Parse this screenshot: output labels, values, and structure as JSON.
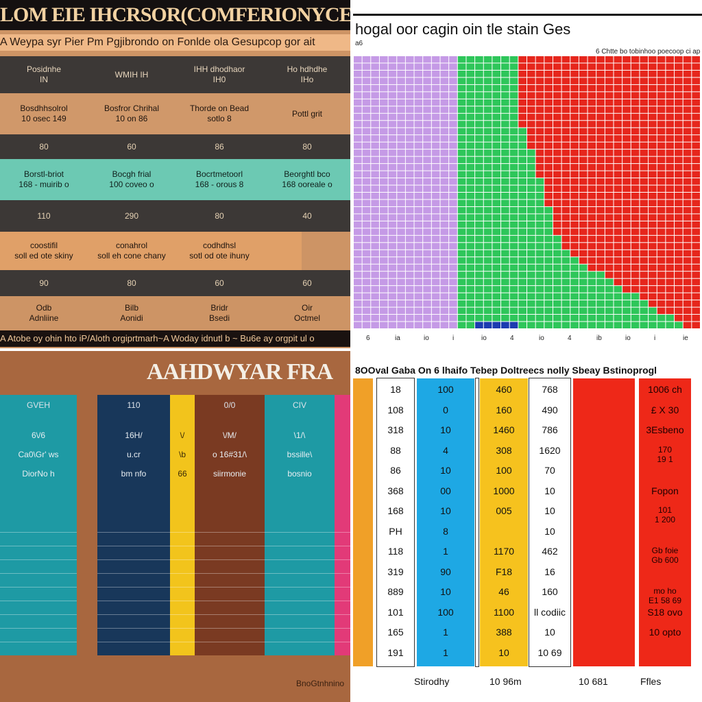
{
  "panels": {
    "top_left": {
      "title": "LOM EIE IHCRSOR(COMFERIONYCE/",
      "subtitle": "A Weypa syr Pier Pm Pgjibrondo on Fonlde ola Gesupcop gor ait",
      "rows": [
        {
          "type": "header",
          "bg": "#3c3836",
          "color": "#e8d6bd",
          "cells": [
            "Posidnhe\nIN",
            "WMIH IH",
            "IHH dhodhaor\nIH0",
            "Ho hdhdhe\nIHo"
          ]
        },
        {
          "type": "data",
          "bg": "#d0986a",
          "color": "#1e140e",
          "cells": [
            "Bosdhhsolrol\n10 osec 149",
            "Bosfror Chrihal\n10 on 86",
            "Thorde on Bead\nsotlo 8",
            "Pottl grit"
          ]
        },
        {
          "type": "value",
          "bg": "#3c3836",
          "color": "#e6d2b4",
          "cells": [
            "80",
            "60",
            "86",
            "80"
          ]
        },
        {
          "type": "data",
          "bg": "#6cc9b3",
          "color": "#10201c",
          "cells": [
            "Borstl-briot\n168 - muirib o",
            "Bocgh frial\n100 coveo o",
            "Bocrtmetoorl\n168 - orous 8",
            "Beorghtl bco\n168 ooreale o"
          ]
        },
        {
          "type": "value",
          "bg": "#3c3836",
          "color": "#e6d2b4",
          "cells": [
            "110",
            "290",
            "80",
            "40"
          ]
        },
        {
          "type": "data",
          "bg": "#e0a068",
          "color": "#1e140e",
          "cells": [
            "coostifil\nsoll ed ote skiny",
            "conahrol\nsoll eh cone chany",
            "codhdhsl\nsotl od ote ihuny",
            ""
          ]
        },
        {
          "type": "value",
          "bg": "#3c3836",
          "color": "#e6d2b4",
          "cells": [
            "90",
            "80",
            "60",
            "60"
          ]
        },
        {
          "type": "data",
          "bg": "#cd9465",
          "color": "#1e140e",
          "cells": [
            "Odb\nAdnliine",
            "Bilb\nAonidi",
            "Bridr\nBsedi",
            "Oir\nOctmel"
          ]
        }
      ],
      "footer": "A Atobe oy ohin hto iP/Aloth orgiprtmarh~A Woday idnutl b ~ Bu6e ay orgpit ul o"
    },
    "top_right": {
      "title": "hogal oor cagin oin tle stain Ges",
      "subtitle_left": "a6",
      "subtitle_right": "6 Chtte bo tobinhoo poecoop ci ap oo",
      "x_ticks": [
        "6",
        "ia",
        "io",
        "i",
        "io",
        "4",
        "io",
        "4",
        "ib",
        "io",
        "i",
        "ie"
      ]
    },
    "bottom_left": {
      "title": "AAHDWYAR FRA",
      "columns": [
        {
          "color": "#1e9aa4",
          "head": "GVEH",
          "lines": [
            "6\\/6",
            "Ca0\\Gr' ws",
            "DiorNo h"
          ]
        },
        {
          "color": "#18375a",
          "head": "110",
          "lines": [
            "16H/",
            "u.cr",
            "bm nfo"
          ]
        },
        {
          "color": "#f2c41c",
          "head": "",
          "lines": [
            "\\/",
            "\\b",
            "66"
          ]
        },
        {
          "color": "#7a3a22",
          "head": "0/0",
          "lines": [
            "\\/M/",
            "o 16#31/\\",
            "siirmonie"
          ]
        },
        {
          "color": "#1e9aa4",
          "head": "CIV",
          "lines": [
            "\\1/\\",
            "bssille\\",
            "bosnio"
          ]
        },
        {
          "color": "#e23a78",
          "head": "",
          "lines": []
        }
      ],
      "tag": "BnoGtnhnino"
    },
    "bottom_right": {
      "title": "8OOval Gaba On 6 lhaifo Tebep Doltreecs nolly Sbeay Bstinoprogl",
      "columns": [
        {
          "header": "",
          "color": "#f0a028",
          "values": []
        },
        {
          "header": "",
          "color": "#ffffff",
          "values": [
            "18",
            "108",
            "318",
            "88",
            "86",
            "368",
            "168",
            "PH",
            "118",
            "319",
            "889",
            "101",
            "165",
            "191"
          ]
        },
        {
          "header": "",
          "color": "#1ea8e4",
          "values": [
            "100",
            "0",
            "10",
            "4",
            "10",
            "00",
            "10",
            "8",
            "1",
            "90",
            "10",
            "100",
            "1",
            "1"
          ]
        },
        {
          "header": "",
          "color": "#ffffff",
          "values": []
        },
        {
          "header": "",
          "color": "#f6c21e",
          "values": [
            "460",
            "160",
            "1460",
            "308",
            "100",
            "1000",
            "005",
            "",
            "1170",
            "F18",
            "46",
            "1100",
            "388",
            "10"
          ]
        },
        {
          "header": "",
          "color": "#ffffff",
          "values": [
            "768",
            "490",
            "786",
            "1620",
            "70",
            "10",
            "10",
            "10",
            "462",
            "16",
            "160",
            "ll codiic",
            "10",
            "10 69"
          ]
        },
        {
          "header": "",
          "color": "#ee2818",
          "values": []
        },
        {
          "header": "",
          "color": "#ee2818",
          "values": [
            "1006 ch",
            "£ X 30",
            "3Esbeno",
            "170\n19 1",
            "",
            "Fopon",
            "101\n1 200",
            "",
            "Gb foie\nGb 600",
            "",
            "mo ho\nE1 58 69",
            "S18 ovo",
            "10 opto",
            ""
          ]
        }
      ],
      "footer": [
        "Stirodhy",
        "10 96m",
        "10 681",
        "Ffles"
      ]
    }
  },
  "chart_data": [
    {
      "type": "table",
      "title": "LOM EIE IHCRSOR(COMFERIONYCE/",
      "values_rows": [
        [
          "80",
          "60",
          "86",
          "80"
        ],
        [
          "110",
          "290",
          "80",
          "40"
        ],
        [
          "90",
          "80",
          "60",
          "60"
        ]
      ]
    },
    {
      "type": "heatmap",
      "title": "hogal oor cagin oin tle stain Ges",
      "grid": {
        "cols": 40,
        "rows": 38
      },
      "regions": [
        {
          "name": "purple",
          "color": "#c59ae6",
          "from_col": 0,
          "to_col": 12
        },
        {
          "name": "green",
          "color": "#2ec65a",
          "from_col": 12,
          "to_col": 24
        },
        {
          "name": "red",
          "color": "#e6261c",
          "from_col": 19,
          "to_col": 40
        }
      ]
    },
    {
      "type": "table",
      "title": "AAHDWYAR FRA"
    },
    {
      "type": "table",
      "title": "8OOval Gaba On 6 lhaifo Tebep Doltreecs nolly Sbeay Bstinoprogl"
    }
  ]
}
